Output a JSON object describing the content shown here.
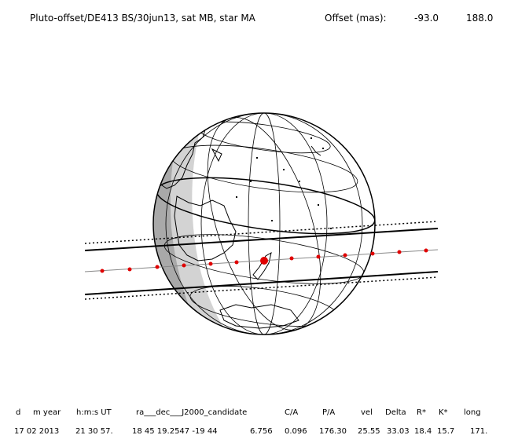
{
  "header": {
    "title": "Pluto-offset/DE413 BS/30jun13, sat MB, star MA",
    "offset_label": "Offset (mas):",
    "offset_x": "-93.0",
    "offset_y": "188.0"
  },
  "table": {
    "headers": [
      "d",
      "m year",
      "h:m:s UT",
      "ra___dec___J2000_candidate",
      "C/A",
      "P/A",
      "vel",
      "Delta",
      "R*",
      "K*",
      "long"
    ],
    "row": [
      "17 02 2013",
      "21 30 57.",
      "18 45 19.2547 -19 44",
      "6.756",
      "0.096",
      "176.30",
      "25.55",
      "33.03",
      "18.4",
      "15.7",
      "171."
    ]
  }
}
